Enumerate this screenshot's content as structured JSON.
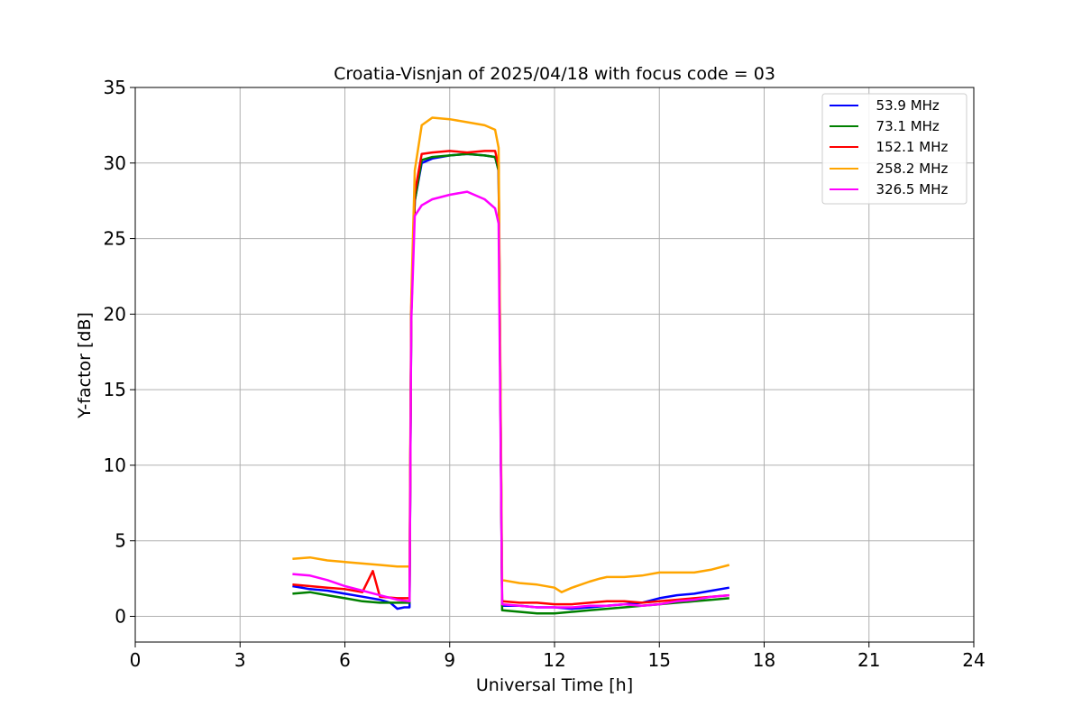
{
  "chart_data": {
    "type": "line",
    "title": "Croatia-Visnjan of 2025/04/18 with focus code = 03",
    "xlabel": "Universal Time [h]",
    "ylabel": "Y-factor [dB]",
    "xlim": [
      0,
      24
    ],
    "ylim": [
      -1.7,
      35
    ],
    "xticks": [
      0,
      3,
      6,
      9,
      12,
      15,
      18,
      21,
      24
    ],
    "yticks": [
      0,
      5,
      10,
      15,
      20,
      25,
      30,
      35
    ],
    "grid": true,
    "legend_position": "top-right",
    "series": [
      {
        "name": "  53.9 MHz",
        "color": "#0000ff",
        "x": [
          4.5,
          5.0,
          5.5,
          6.0,
          6.5,
          7.0,
          7.3,
          7.5,
          7.7,
          7.85,
          7.9,
          8.0,
          8.2,
          8.5,
          9.0,
          9.5,
          10.0,
          10.3,
          10.4,
          10.5,
          11.0,
          11.5,
          12.0,
          12.5,
          13.0,
          13.5,
          14.0,
          14.5,
          15.0,
          15.5,
          16.0,
          16.5,
          17.0
        ],
        "y": [
          2.0,
          1.8,
          1.7,
          1.5,
          1.3,
          1.1,
          0.9,
          0.5,
          0.6,
          0.6,
          20.0,
          27.5,
          30.0,
          30.3,
          30.5,
          30.6,
          30.5,
          30.4,
          29.5,
          0.7,
          0.7,
          0.6,
          0.6,
          0.5,
          0.6,
          0.7,
          0.8,
          0.9,
          1.2,
          1.4,
          1.5,
          1.7,
          1.9
        ]
      },
      {
        "name": "  73.1 MHz",
        "color": "#008000",
        "x": [
          4.5,
          5.0,
          5.5,
          6.0,
          6.5,
          7.0,
          7.5,
          7.85,
          7.9,
          8.0,
          8.2,
          8.5,
          9.0,
          9.5,
          10.0,
          10.3,
          10.4,
          10.5,
          11.0,
          11.5,
          12.0,
          12.5,
          13.0,
          13.5,
          14.0,
          14.5,
          15.0,
          15.5,
          16.0,
          16.5,
          17.0
        ],
        "y": [
          1.5,
          1.6,
          1.4,
          1.2,
          1.0,
          0.9,
          0.9,
          0.9,
          20.0,
          27.5,
          30.2,
          30.4,
          30.5,
          30.6,
          30.5,
          30.4,
          29.5,
          0.4,
          0.3,
          0.2,
          0.2,
          0.3,
          0.4,
          0.5,
          0.6,
          0.7,
          0.8,
          0.9,
          1.0,
          1.1,
          1.2
        ]
      },
      {
        "name": "  152.1 MHz",
        "color": "#ff0000",
        "x": [
          4.5,
          5.0,
          5.5,
          6.0,
          6.5,
          6.8,
          7.0,
          7.5,
          7.85,
          7.9,
          8.0,
          8.2,
          8.5,
          9.0,
          9.5,
          10.0,
          10.3,
          10.4,
          10.5,
          11.0,
          11.5,
          12.0,
          12.5,
          13.0,
          13.5,
          14.0,
          14.5,
          15.0,
          15.5,
          16.0,
          16.5,
          17.0
        ],
        "y": [
          2.1,
          2.0,
          1.9,
          1.8,
          1.6,
          3.0,
          1.3,
          1.2,
          1.2,
          20.5,
          28.0,
          30.6,
          30.7,
          30.8,
          30.7,
          30.8,
          30.8,
          29.8,
          1.0,
          0.9,
          0.9,
          0.8,
          0.8,
          0.9,
          1.0,
          1.0,
          0.9,
          1.0,
          1.1,
          1.2,
          1.3,
          1.4
        ]
      },
      {
        "name": "  258.2 MHz",
        "color": "#ffa500",
        "x": [
          4.5,
          5.0,
          5.5,
          6.0,
          6.5,
          7.0,
          7.5,
          7.85,
          7.9,
          8.0,
          8.2,
          8.5,
          9.0,
          9.5,
          10.0,
          10.3,
          10.4,
          10.5,
          11.0,
          11.5,
          12.0,
          12.2,
          12.5,
          13.0,
          13.3,
          13.5,
          14.0,
          14.5,
          15.0,
          15.5,
          16.0,
          16.5,
          17.0
        ],
        "y": [
          3.8,
          3.9,
          3.7,
          3.6,
          3.5,
          3.4,
          3.3,
          3.3,
          21.0,
          29.5,
          32.5,
          33.0,
          32.9,
          32.7,
          32.5,
          32.2,
          31.0,
          2.4,
          2.2,
          2.1,
          1.9,
          1.6,
          1.9,
          2.3,
          2.5,
          2.6,
          2.6,
          2.7,
          2.9,
          2.9,
          2.9,
          3.1,
          3.4
        ]
      },
      {
        "name": "  326.5 MHz",
        "color": "#ff00ff",
        "x": [
          4.5,
          5.0,
          5.5,
          6.0,
          6.5,
          7.0,
          7.5,
          7.85,
          7.9,
          8.0,
          8.2,
          8.5,
          9.0,
          9.5,
          10.0,
          10.3,
          10.4,
          10.5,
          11.0,
          11.5,
          12.0,
          12.5,
          13.0,
          13.5,
          14.0,
          14.5,
          15.0,
          15.5,
          16.0,
          16.5,
          17.0
        ],
        "y": [
          2.8,
          2.7,
          2.4,
          2.0,
          1.7,
          1.4,
          1.1,
          1.0,
          19.5,
          26.5,
          27.2,
          27.6,
          27.9,
          28.1,
          27.6,
          27.0,
          26.0,
          0.8,
          0.7,
          0.6,
          0.6,
          0.6,
          0.7,
          0.7,
          0.8,
          0.7,
          0.8,
          1.0,
          1.1,
          1.3,
          1.4
        ]
      }
    ]
  }
}
